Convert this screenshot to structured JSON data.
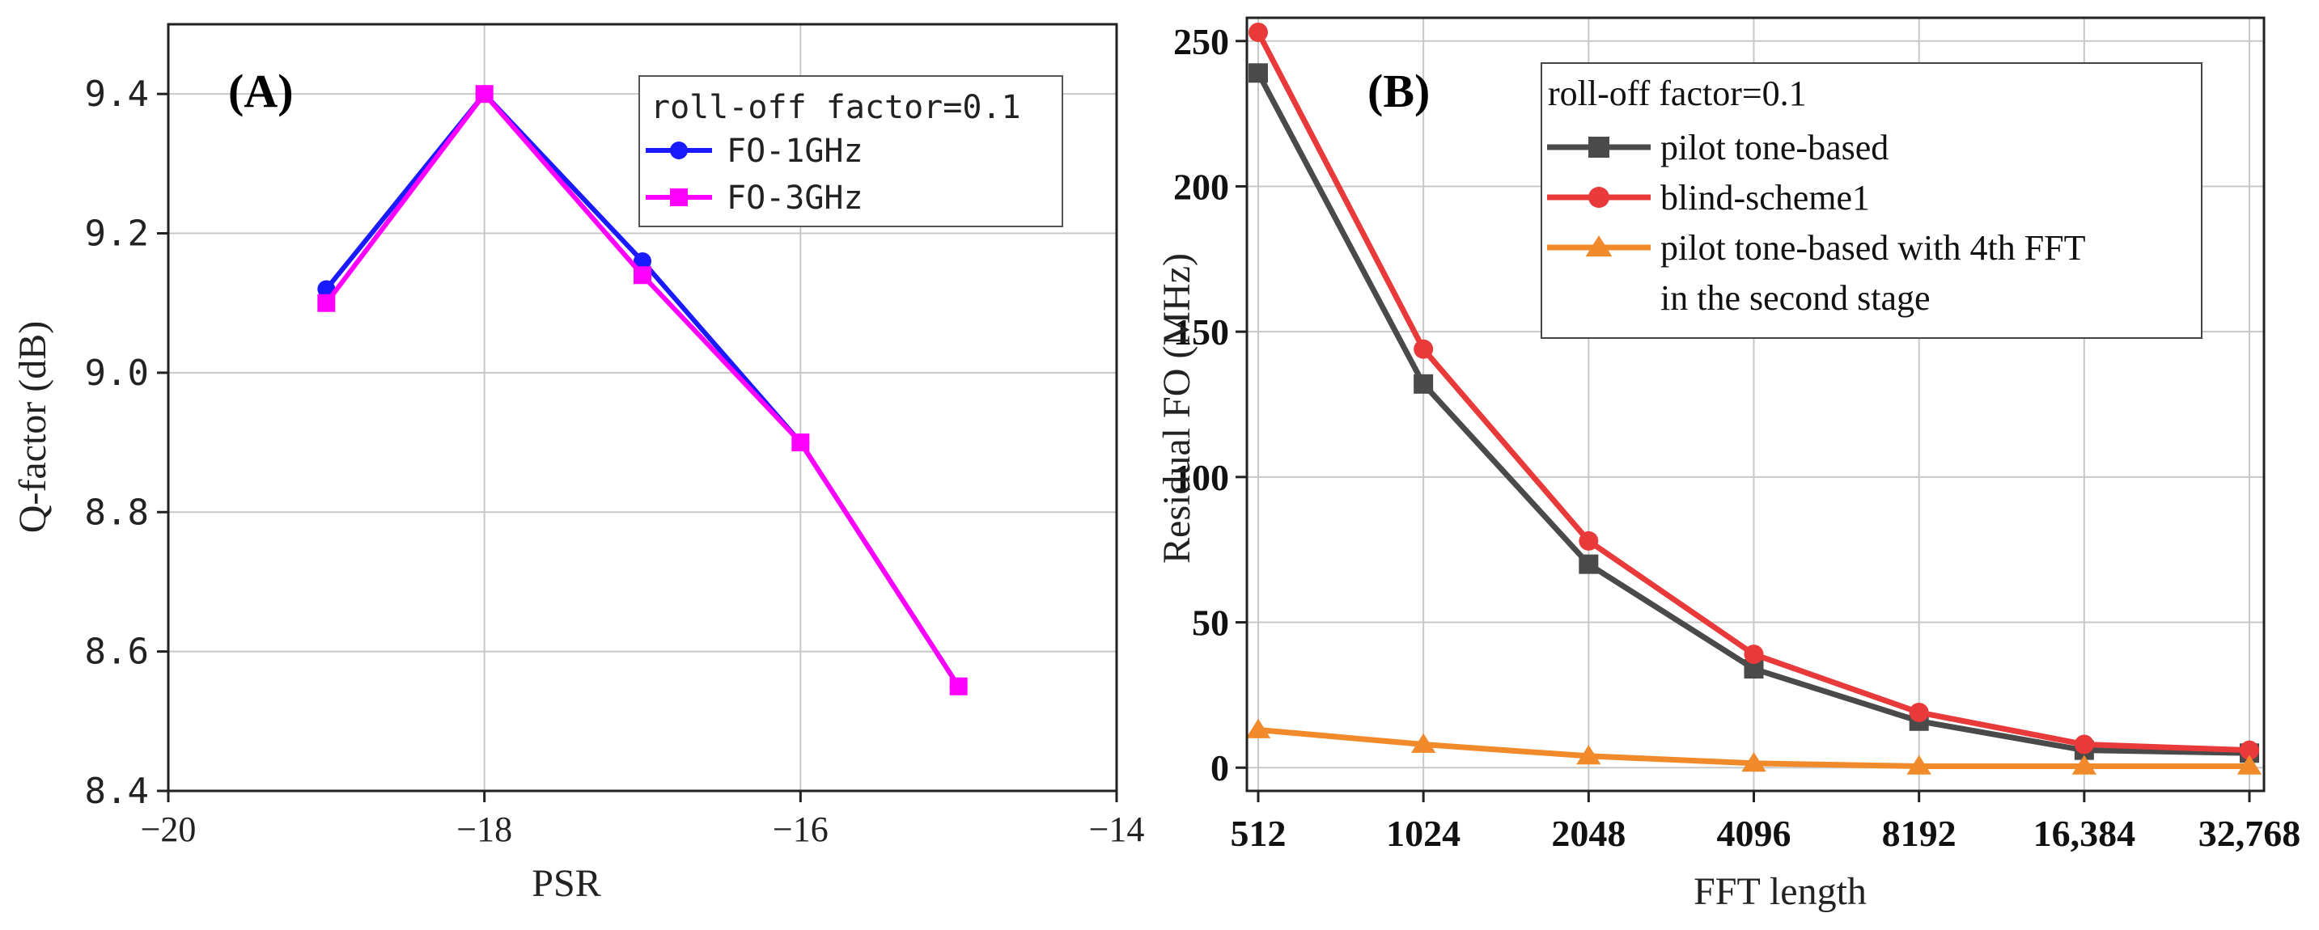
{
  "chart_data": [
    {
      "panel": "(A)",
      "type": "line",
      "xlabel": "PSR",
      "ylabel": "Q-factor (dB)",
      "xlim": [
        -20,
        -14
      ],
      "ylim": [
        8.4,
        9.5
      ],
      "xticks": [
        -20,
        -18,
        -16,
        -14
      ],
      "xtick_labels": [
        "−20",
        "−18",
        "−16",
        "−14"
      ],
      "yticks": [
        8.4,
        8.6,
        8.8,
        9.0,
        9.2,
        9.4
      ],
      "ytick_labels": [
        "8.4",
        "8.6",
        "8.8",
        "9.0",
        "9.2",
        "9.4"
      ],
      "legend_title": "roll-off factor=0.1",
      "legend_position": "top-right",
      "grid": true,
      "series": [
        {
          "name": "FO-1GHz",
          "color": "#1a1aff",
          "marker": "circle",
          "x": [
            -19,
            -18,
            -17,
            -16,
            -15
          ],
          "y": [
            9.12,
            9.4,
            9.16,
            8.9,
            8.55
          ]
        },
        {
          "name": "FO-3GHz",
          "color": "#ff00ff",
          "marker": "square",
          "x": [
            -19,
            -18,
            -17,
            -16,
            -15
          ],
          "y": [
            9.1,
            9.4,
            9.14,
            8.9,
            8.55
          ]
        }
      ]
    },
    {
      "panel": "(B)",
      "type": "line",
      "xlabel": "FFT length",
      "ylabel": "Residual FO (MHz)",
      "categories": [
        "512",
        "1024",
        "2048",
        "4096",
        "8192",
        "16,384",
        "32,768"
      ],
      "ylim": [
        -8,
        258
      ],
      "yticks": [
        0,
        50,
        100,
        150,
        200,
        250
      ],
      "ytick_labels": [
        "0",
        "50",
        "100",
        "150",
        "200",
        "250"
      ],
      "legend_title": "roll-off factor=0.1",
      "legend_position": "top-right",
      "grid": true,
      "series": [
        {
          "name": "pilot tone-based",
          "color": "#4a4a4a",
          "marker": "square",
          "values": [
            239,
            132,
            70,
            34,
            16,
            6,
            5
          ]
        },
        {
          "name": "blind-scheme1",
          "color": "#e83a3a",
          "marker": "circle",
          "values": [
            253,
            144,
            78,
            39,
            19,
            8,
            6
          ]
        },
        {
          "name": "pilot tone-based with 4th FFT",
          "name_line2": "in the second stage",
          "color": "#f08a2a",
          "marker": "triangle",
          "values": [
            13,
            8,
            4,
            1.5,
            0.5,
            0.5,
            0.5
          ]
        }
      ]
    }
  ],
  "colors": {
    "grid": "#c8c8c8",
    "axis": "#222222"
  }
}
